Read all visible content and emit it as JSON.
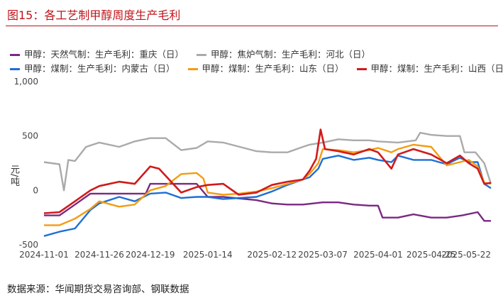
{
  "figure": {
    "title": "图15：各工艺制甲醇周度生产毛利",
    "source": "数据来源：华闻期货交易咨询部、钢联数据"
  },
  "chart_data": {
    "type": "line",
    "ylabel": "元/吨",
    "ylim": [
      -500,
      1000
    ],
    "yticks": [
      -500,
      0,
      500,
      1000
    ],
    "ytick_labels": [
      "-500",
      "0",
      "500",
      "1,000"
    ],
    "xlim": [
      "2024-11-01",
      "2025-05-22"
    ],
    "xticks": [
      "2024-11-01",
      "2024-11-26",
      "2024-12-19",
      "2025-01-14",
      "2025-02-12",
      "2025-03-07",
      "2025-04-01",
      "2025-04-25",
      "2025-05-22"
    ],
    "xtick_labels": [
      "2024-11-01",
      "2024-11-26",
      "2024-12-19",
      "2025-01-14",
      "2025-02-12",
      "2025-03-07",
      "2025-04-01",
      "2025-04-25",
      "2025-05-22"
    ],
    "legend_position": "top",
    "series": [
      {
        "name": "甲醇：天然气制：生产毛利：重庆（日）",
        "color": "#7b2882",
        "x": [
          "2024-11-01",
          "2024-11-08",
          "2024-11-15",
          "2024-11-22",
          "2024-11-26",
          "2024-12-05",
          "2024-12-12",
          "2024-12-17",
          "2024-12-19",
          "2025-01-02",
          "2025-01-09",
          "2025-01-14",
          "2025-01-21",
          "2025-02-05",
          "2025-02-12",
          "2025-02-19",
          "2025-02-26",
          "2025-03-07",
          "2025-03-14",
          "2025-03-21",
          "2025-03-28",
          "2025-04-01",
          "2025-04-03",
          "2025-04-10",
          "2025-04-17",
          "2025-04-25",
          "2025-05-02",
          "2025-05-09",
          "2025-05-16",
          "2025-05-19",
          "2025-05-22"
        ],
        "y": [
          -230,
          -230,
          -130,
          -30,
          -30,
          -30,
          -30,
          -30,
          60,
          60,
          60,
          -60,
          -60,
          -90,
          -120,
          -130,
          -130,
          -110,
          -110,
          -130,
          -140,
          -140,
          -250,
          -250,
          -220,
          -250,
          -250,
          -230,
          -200,
          -280,
          -280
        ]
      },
      {
        "name": "甲醇：焦炉气制：生产毛利：河北（日）",
        "color": "#aaaaaa",
        "x": [
          "2024-11-01",
          "2024-11-08",
          "2024-11-10",
          "2024-11-12",
          "2024-11-15",
          "2024-11-20",
          "2024-11-26",
          "2024-12-05",
          "2024-12-12",
          "2024-12-19",
          "2024-12-26",
          "2025-01-02",
          "2025-01-09",
          "2025-01-14",
          "2025-01-21",
          "2025-02-05",
          "2025-02-12",
          "2025-02-19",
          "2025-02-26",
          "2025-03-01",
          "2025-03-07",
          "2025-03-14",
          "2025-03-21",
          "2025-03-28",
          "2025-04-01",
          "2025-04-10",
          "2025-04-18",
          "2025-04-20",
          "2025-04-25",
          "2025-05-02",
          "2025-05-08",
          "2025-05-10",
          "2025-05-15",
          "2025-05-19",
          "2025-05-22"
        ],
        "y": [
          260,
          240,
          0,
          280,
          270,
          400,
          440,
          400,
          450,
          480,
          480,
          370,
          390,
          450,
          440,
          360,
          350,
          350,
          400,
          420,
          440,
          470,
          460,
          460,
          450,
          440,
          460,
          530,
          510,
          500,
          500,
          350,
          350,
          250,
          60
        ]
      },
      {
        "name": "甲醇：煤制：生产毛利：内蒙古（日）",
        "color": "#1d6fd6",
        "x": [
          "2024-11-01",
          "2024-11-08",
          "2024-11-15",
          "2024-11-22",
          "2024-11-26",
          "2024-12-05",
          "2024-12-12",
          "2024-12-19",
          "2024-12-26",
          "2025-01-02",
          "2025-01-09",
          "2025-01-14",
          "2025-01-21",
          "2025-01-28",
          "2025-02-05",
          "2025-02-12",
          "2025-02-19",
          "2025-02-26",
          "2025-03-01",
          "2025-03-05",
          "2025-03-07",
          "2025-03-14",
          "2025-03-21",
          "2025-03-28",
          "2025-04-01",
          "2025-04-07",
          "2025-04-10",
          "2025-04-17",
          "2025-04-25",
          "2025-05-02",
          "2025-05-08",
          "2025-05-12",
          "2025-05-16",
          "2025-05-19",
          "2025-05-22"
        ],
        "y": [
          -420,
          -380,
          -350,
          -180,
          -120,
          -60,
          -100,
          -30,
          -20,
          -70,
          -60,
          -60,
          -80,
          -70,
          -60,
          -10,
          50,
          100,
          120,
          200,
          290,
          320,
          280,
          300,
          280,
          260,
          320,
          280,
          280,
          240,
          300,
          260,
          260,
          60,
          20
        ]
      },
      {
        "name": "甲醇：煤制：生产毛利：山东（日）",
        "color": "#f39c12",
        "x": [
          "2024-11-01",
          "2024-11-08",
          "2024-11-15",
          "2024-11-22",
          "2024-11-26",
          "2024-12-05",
          "2024-12-12",
          "2024-12-19",
          "2024-12-26",
          "2025-01-02",
          "2025-01-09",
          "2025-01-12",
          "2025-01-14",
          "2025-01-21",
          "2025-01-28",
          "2025-02-05",
          "2025-02-12",
          "2025-02-19",
          "2025-02-26",
          "2025-03-01",
          "2025-03-05",
          "2025-03-07",
          "2025-03-14",
          "2025-03-21",
          "2025-03-28",
          "2025-04-01",
          "2025-04-07",
          "2025-04-10",
          "2025-04-17",
          "2025-04-25",
          "2025-05-02",
          "2025-05-08",
          "2025-05-12",
          "2025-05-16",
          "2025-05-19",
          "2025-05-22"
        ],
        "y": [
          -320,
          -320,
          -260,
          -170,
          -100,
          -150,
          -130,
          0,
          40,
          150,
          160,
          110,
          -20,
          -40,
          -30,
          -10,
          20,
          60,
          100,
          150,
          250,
          380,
          370,
          350,
          370,
          390,
          350,
          380,
          420,
          400,
          230,
          260,
          280,
          220,
          70,
          60
        ]
      },
      {
        "name": "甲醇：煤制：生产毛利：山西（日）",
        "color": "#d11a1a",
        "x": [
          "2024-11-01",
          "2024-11-08",
          "2024-11-15",
          "2024-11-22",
          "2024-11-26",
          "2024-12-05",
          "2024-12-12",
          "2024-12-19",
          "2024-12-23",
          "2025-01-02",
          "2025-01-09",
          "2025-01-14",
          "2025-01-21",
          "2025-01-28",
          "2025-02-05",
          "2025-02-12",
          "2025-02-19",
          "2025-02-26",
          "2025-03-01",
          "2025-03-04",
          "2025-03-06",
          "2025-03-08",
          "2025-03-14",
          "2025-03-21",
          "2025-03-28",
          "2025-04-01",
          "2025-04-07",
          "2025-04-10",
          "2025-04-17",
          "2025-04-25",
          "2025-05-02",
          "2025-05-08",
          "2025-05-12",
          "2025-05-16",
          "2025-05-19",
          "2025-05-22"
        ],
        "y": [
          -210,
          -200,
          -100,
          0,
          40,
          80,
          60,
          220,
          200,
          -20,
          30,
          50,
          60,
          -40,
          -20,
          50,
          80,
          100,
          180,
          290,
          560,
          380,
          360,
          330,
          380,
          350,
          200,
          330,
          380,
          330,
          250,
          320,
          250,
          200,
          60,
          70
        ]
      }
    ]
  }
}
